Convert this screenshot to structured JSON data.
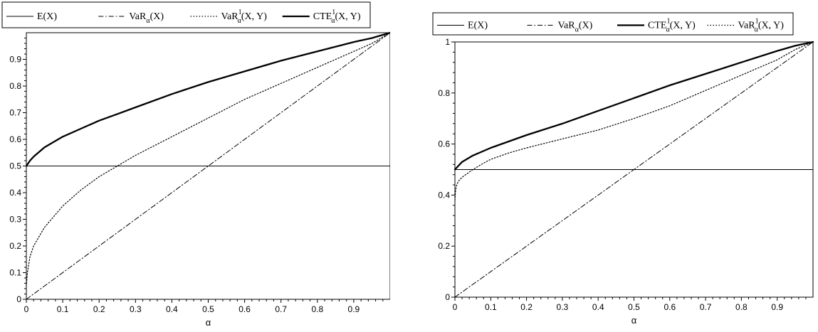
{
  "chart_data": [
    {
      "type": "line",
      "xlabel": "α",
      "ylabel": "",
      "xlim": [
        0,
        1
      ],
      "ylim": [
        0,
        1
      ],
      "xticks": [
        "0",
        "0.1",
        "0.2",
        "0.3",
        "0.4",
        "0.5",
        "0.6",
        "0.7",
        "0.8",
        "0.9"
      ],
      "yticks": [
        "0",
        "0.1",
        "0.2",
        "0.3",
        "0.4",
        "0.5",
        "0.6",
        "0.7",
        "0.8",
        "0.9"
      ],
      "grid": false,
      "legend_position": "top",
      "legend": [
        {
          "base": "E(X)",
          "sub": "",
          "sup": "",
          "tail": "",
          "style": "solid"
        },
        {
          "base": "VaR",
          "sub": "α",
          "sup": "",
          "tail": "(X)",
          "style": "dashdot"
        },
        {
          "base": "VaR",
          "sub": "α",
          "sup": "1",
          "tail": "(X, Y)",
          "style": "dotted"
        },
        {
          "base": "CTE",
          "sub": "α",
          "sup": "1",
          "tail": "(X, Y)",
          "style": "thick"
        }
      ],
      "series": [
        {
          "name": "E(X)",
          "style": "solid",
          "x": [
            0,
            1
          ],
          "y": [
            0.5,
            0.5
          ]
        },
        {
          "name": "VaRα(X)",
          "style": "dashdot",
          "x": [
            0,
            1
          ],
          "y": [
            0,
            1
          ]
        },
        {
          "name": "VaRα1(X, Y)",
          "style": "dotted",
          "x": [
            0,
            0.003,
            0.01,
            0.02,
            0.05,
            0.1,
            0.15,
            0.2,
            0.25,
            0.3,
            0.4,
            0.5,
            0.6,
            0.7,
            0.8,
            0.9,
            0.95,
            1.0
          ],
          "y": [
            0.05,
            0.1,
            0.16,
            0.2,
            0.27,
            0.35,
            0.41,
            0.46,
            0.5,
            0.54,
            0.61,
            0.68,
            0.75,
            0.81,
            0.87,
            0.93,
            0.96,
            1.0
          ]
        },
        {
          "name": "CTEα1(X, Y)",
          "style": "thick",
          "x": [
            0,
            0.01,
            0.02,
            0.05,
            0.1,
            0.15,
            0.2,
            0.25,
            0.3,
            0.4,
            0.5,
            0.6,
            0.7,
            0.8,
            0.9,
            0.95,
            1.0
          ],
          "y": [
            0.5,
            0.52,
            0.535,
            0.57,
            0.61,
            0.64,
            0.67,
            0.695,
            0.72,
            0.77,
            0.815,
            0.855,
            0.895,
            0.93,
            0.965,
            0.98,
            1.0
          ]
        }
      ]
    },
    {
      "type": "line",
      "xlabel": "α",
      "ylabel": "",
      "xlim": [
        0,
        1
      ],
      "ylim": [
        0,
        1
      ],
      "xticks": [
        "0",
        "0.1",
        "0.2",
        "0.3",
        "0.4",
        "0.5",
        "0.6",
        "0.7",
        "0.8",
        "0.9"
      ],
      "yticks": [
        "0",
        "0.2",
        "0.4",
        "0.6",
        "0.8",
        "1"
      ],
      "grid": false,
      "legend_position": "top",
      "legend": [
        {
          "base": "E(X)",
          "sub": "",
          "sup": "",
          "tail": "",
          "style": "solid"
        },
        {
          "base": "VaR",
          "sub": "α",
          "sup": "",
          "tail": "(X)",
          "style": "dashdot"
        },
        {
          "base": "CTE",
          "sub": "α",
          "sup": "1",
          "tail": "(X, Y)",
          "style": "thick"
        },
        {
          "base": "VaR",
          "sub": "α",
          "sup": "1",
          "tail": "(X, Y)",
          "style": "dotted"
        }
      ],
      "series": [
        {
          "name": "E(X)",
          "style": "solid",
          "x": [
            0,
            1
          ],
          "y": [
            0.5,
            0.5
          ]
        },
        {
          "name": "VaRα(X)",
          "style": "dashdot",
          "x": [
            0,
            1
          ],
          "y": [
            0,
            1
          ]
        },
        {
          "name": "CTEα1(X, Y)",
          "style": "thick",
          "x": [
            0,
            0.01,
            0.02,
            0.05,
            0.1,
            0.15,
            0.2,
            0.3,
            0.4,
            0.5,
            0.6,
            0.7,
            0.8,
            0.9,
            0.95,
            1.0
          ],
          "y": [
            0.5,
            0.515,
            0.53,
            0.555,
            0.585,
            0.61,
            0.635,
            0.68,
            0.73,
            0.78,
            0.83,
            0.875,
            0.92,
            0.965,
            0.985,
            1.0
          ]
        },
        {
          "name": "VaRα1(X, Y)",
          "style": "dotted",
          "x": [
            0,
            0.002,
            0.005,
            0.01,
            0.02,
            0.03,
            0.05,
            0.08,
            0.1,
            0.15,
            0.2,
            0.3,
            0.4,
            0.5,
            0.6,
            0.7,
            0.8,
            0.9,
            0.95,
            1.0
          ],
          "y": [
            0.38,
            0.42,
            0.44,
            0.455,
            0.47,
            0.48,
            0.5,
            0.525,
            0.54,
            0.565,
            0.585,
            0.62,
            0.655,
            0.7,
            0.75,
            0.81,
            0.87,
            0.93,
            0.97,
            1.0
          ]
        }
      ]
    }
  ]
}
